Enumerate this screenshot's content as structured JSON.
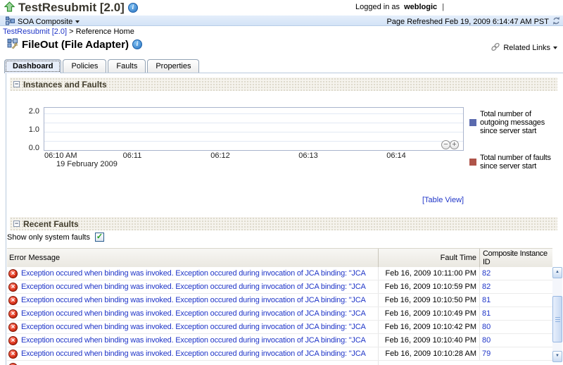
{
  "header": {
    "app_title": "TestResubmit [2.0]",
    "logged_in_as": "Logged in as",
    "username": "weblogic",
    "separator": "|",
    "context_label": "SOA Composite",
    "page_refreshed": "Page Refreshed Feb 19, 2009 6:14:47 AM PST"
  },
  "breadcrumb": {
    "parent": "TestResubmit [2.0]",
    "separator": ">",
    "current": "Reference Home"
  },
  "page": {
    "title": "FileOut (File Adapter)",
    "related_links_label": "Related Links"
  },
  "tabs": [
    {
      "label": "Dashboard",
      "active": true
    },
    {
      "label": "Policies",
      "active": false
    },
    {
      "label": "Faults",
      "active": false
    },
    {
      "label": "Properties",
      "active": false
    }
  ],
  "instances_section": {
    "title": "Instances and Faults",
    "table_view_label": "[Table View]",
    "chart_data": {
      "type": "line",
      "title": "Instances and Faults",
      "x_ticks": [
        "06:10 AM",
        "06:11",
        "06:12",
        "06:13",
        "06:14"
      ],
      "x_sublabel": "19 February 2009",
      "y_ticks": [
        "2.0",
        "1.0",
        "0.0"
      ],
      "ylim": [
        0.0,
        2.0
      ],
      "grid": true,
      "legend_position": "right",
      "series": [
        {
          "name": "Total number of outgoing messages since server start",
          "color": "#5a6aae",
          "values": []
        },
        {
          "name": "Total number of faults since server start",
          "color": "#af5449",
          "values": []
        }
      ]
    }
  },
  "faults_section": {
    "title": "Recent Faults",
    "filter_label": "Show only system faults",
    "filter_checked": true,
    "table": {
      "columns": [
        "Error Message",
        "Fault Time",
        "Composite Instance ID"
      ],
      "rows": [
        {
          "message": "Exception occured when binding was invoked. Exception occured during invocation of JCA binding: \"JCA",
          "fault_time": "Feb 16, 2009 10:11:00 PM",
          "instance_id": "82"
        },
        {
          "message": "Exception occured when binding was invoked. Exception occured during invocation of JCA binding: \"JCA",
          "fault_time": "Feb 16, 2009 10:10:59 PM",
          "instance_id": "82"
        },
        {
          "message": "Exception occured when binding was invoked. Exception occured during invocation of JCA binding: \"JCA",
          "fault_time": "Feb 16, 2009 10:10:50 PM",
          "instance_id": "81"
        },
        {
          "message": "Exception occured when binding was invoked. Exception occured during invocation of JCA binding: \"JCA",
          "fault_time": "Feb 16, 2009 10:10:49 PM",
          "instance_id": "81"
        },
        {
          "message": "Exception occured when binding was invoked. Exception occured during invocation of JCA binding: \"JCA",
          "fault_time": "Feb 16, 2009 10:10:42 PM",
          "instance_id": "80"
        },
        {
          "message": "Exception occured when binding was invoked. Exception occured during invocation of JCA binding: \"JCA",
          "fault_time": "Feb 16, 2009 10:10:40 PM",
          "instance_id": "80"
        },
        {
          "message": "Exception occured when binding was invoked. Exception occured during invocation of JCA binding: \"JCA",
          "fault_time": "Feb 16, 2009 10:10:28 AM",
          "instance_id": "79"
        }
      ],
      "partial_row_visible": true
    }
  },
  "icons": {
    "info": "i",
    "collapse": "−",
    "check": "✓",
    "error": "×",
    "zoom_out": "−",
    "zoom_in": "+",
    "scroll_up": "▲",
    "scroll_down": "▼"
  },
  "colors": {
    "link": "#2036c8",
    "header_band": "#d8e7f8",
    "legend_messages": "#5a6aae",
    "legend_faults": "#af5449"
  }
}
